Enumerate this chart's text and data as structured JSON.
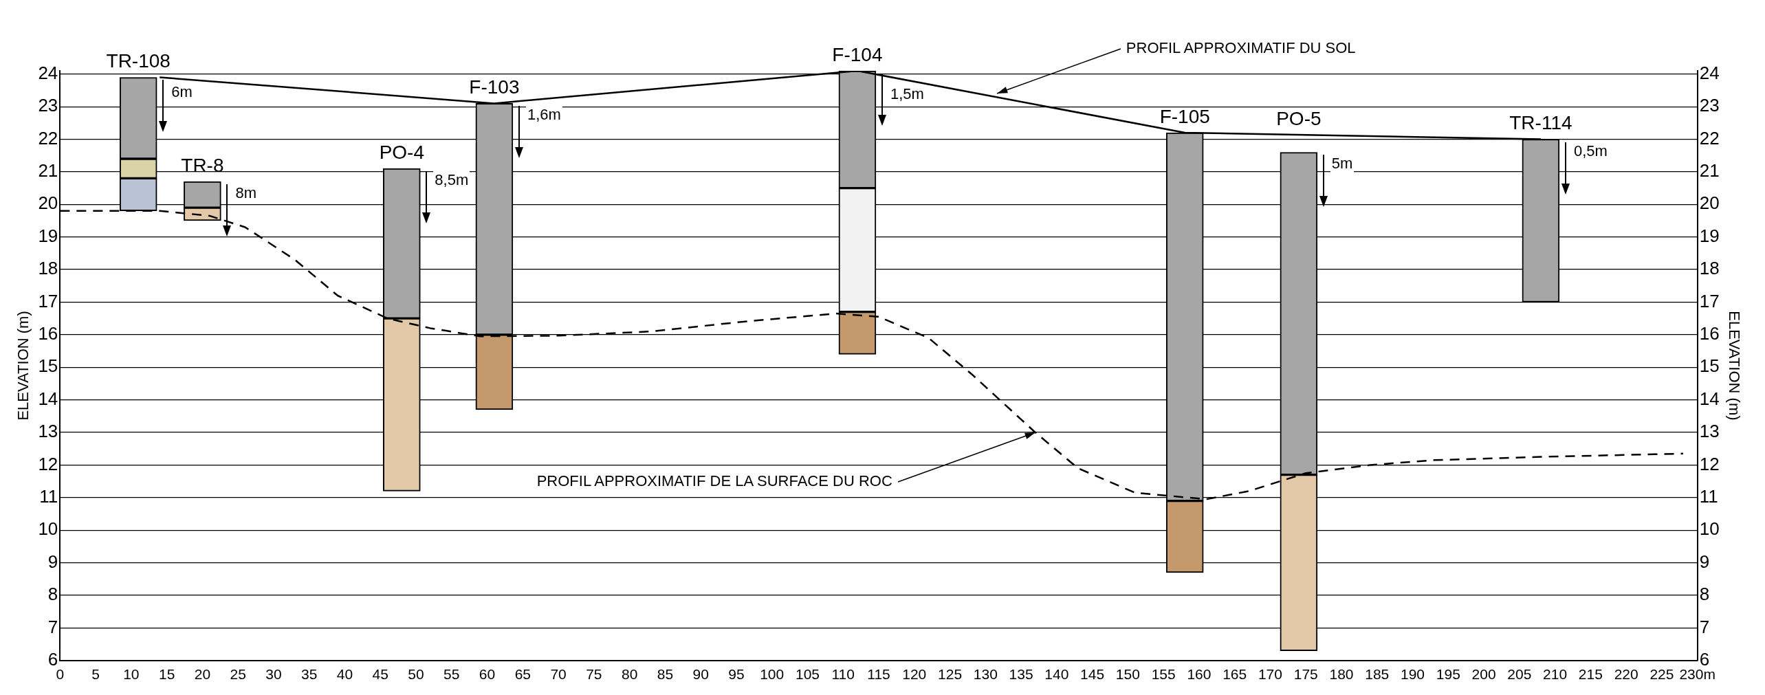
{
  "chart_data": {
    "type": "bar",
    "ylabel": "ELEVATION (m)",
    "y2label": "ELEVATION (m)",
    "xlim": [
      0,
      230
    ],
    "xticks": [
      0,
      5,
      10,
      15,
      20,
      25,
      30,
      35,
      40,
      45,
      50,
      55,
      60,
      65,
      70,
      75,
      80,
      85,
      90,
      95,
      100,
      105,
      110,
      115,
      120,
      125,
      130,
      135,
      140,
      145,
      150,
      155,
      160,
      165,
      170,
      175,
      180,
      185,
      190,
      195,
      200,
      205,
      210,
      215,
      220,
      225,
      {
        "value": 230,
        "label": "230m"
      }
    ],
    "ylim": [
      6,
      24.1
    ],
    "yticks": [
      6,
      7,
      8,
      9,
      10,
      11,
      12,
      13,
      14,
      15,
      16,
      17,
      18,
      19,
      20,
      21,
      22,
      23,
      24
    ],
    "y2lim": [
      6,
      24.1
    ],
    "y2ticks": [
      6,
      7,
      8,
      9,
      10,
      11,
      12,
      13,
      14,
      15,
      16,
      17,
      18,
      19,
      20,
      21,
      22,
      23,
      24
    ],
    "grid": "y",
    "legend": false,
    "series": [
      {
        "color": "#a6a6a6",
        "x": [
          11,
          20,
          48,
          61,
          112,
          158,
          174,
          208
        ],
        "base": [
          21.4,
          19.9,
          16.5,
          16.0,
          20.5,
          10.9,
          11.7,
          17.0
        ],
        "values": [
          2.5,
          0.8,
          4.6,
          7.1,
          3.6,
          11.3,
          9.9,
          5.0
        ],
        "value_labels": [
          "TR-108",
          "TR-8",
          "PO-4",
          "F-103",
          "F-104",
          "F-105",
          "PO-5",
          "TR-114"
        ]
      },
      {
        "color": "#d9d2a6",
        "x": [
          11
        ],
        "base": [
          20.8
        ],
        "values": [
          0.6
        ]
      },
      {
        "color": "#b8c4d6",
        "x": [
          11
        ],
        "base": [
          19.8
        ],
        "values": [
          1.0
        ]
      },
      {
        "color": "#f2f2f2",
        "x": [
          112
        ],
        "base": [
          16.7
        ],
        "values": [
          3.8
        ]
      },
      {
        "color": "#c49a6c",
        "x": [
          61,
          112,
          158
        ],
        "base": [
          13.7,
          15.4,
          8.7
        ],
        "values": [
          2.3,
          1.3,
          2.2
        ]
      },
      {
        "color": "#e3c9a8",
        "x": [
          20,
          48,
          174
        ],
        "base": [
          19.5,
          11.2,
          6.3
        ],
        "values": [
          0.4,
          5.3,
          5.4
        ]
      },
      {
        "type": "line",
        "color": "#000000",
        "line_style": "solid",
        "marker": "none",
        "x": [
          14,
          61,
          112,
          158,
          208
        ],
        "values": [
          23.9,
          23.1,
          24.1,
          22.2,
          22.0
        ]
      },
      {
        "type": "line",
        "color": "#000000",
        "line_style": "dashed",
        "marker": "none",
        "x": [
          0,
          9,
          14,
          21,
          26,
          33,
          39,
          46,
          52,
          59,
          70,
          83,
          96,
          109,
          115,
          122,
          128,
          137,
          143,
          151,
          161,
          167,
          175,
          184,
          193,
          208,
          224,
          228
        ],
        "values": [
          19.8,
          19.8,
          19.8,
          19.65,
          19.3,
          18.3,
          17.2,
          16.5,
          16.2,
          15.95,
          15.97,
          16.1,
          16.4,
          16.65,
          16.55,
          15.9,
          14.8,
          13.0,
          11.9,
          11.15,
          10.95,
          11.2,
          11.75,
          12.0,
          12.15,
          12.25,
          12.33,
          12.35
        ]
      }
    ],
    "annotations": [
      {
        "text": "6m",
        "x": 11,
        "y": 23.9
      },
      {
        "text": "8m",
        "x": 20,
        "y": 20.7
      },
      {
        "text": "8,5m",
        "x": 48,
        "y": 21.1
      },
      {
        "text": "1,6m",
        "x": 61,
        "y": 23.1
      },
      {
        "text": "1,5m",
        "x": 112,
        "y": 24.1
      },
      {
        "text": "5m",
        "x": 174,
        "y": 21.6
      },
      {
        "text": "0,5m",
        "x": 208,
        "y": 22.0
      },
      {
        "text": "PROFIL APPROXIMATIF DU SOL",
        "x": 131.6,
        "y": 23.4
      },
      {
        "text": "PROFIL APPROXIMATIF DE LA SURFACE DU ROC",
        "x": 137,
        "y": 13.0
      }
    ]
  }
}
